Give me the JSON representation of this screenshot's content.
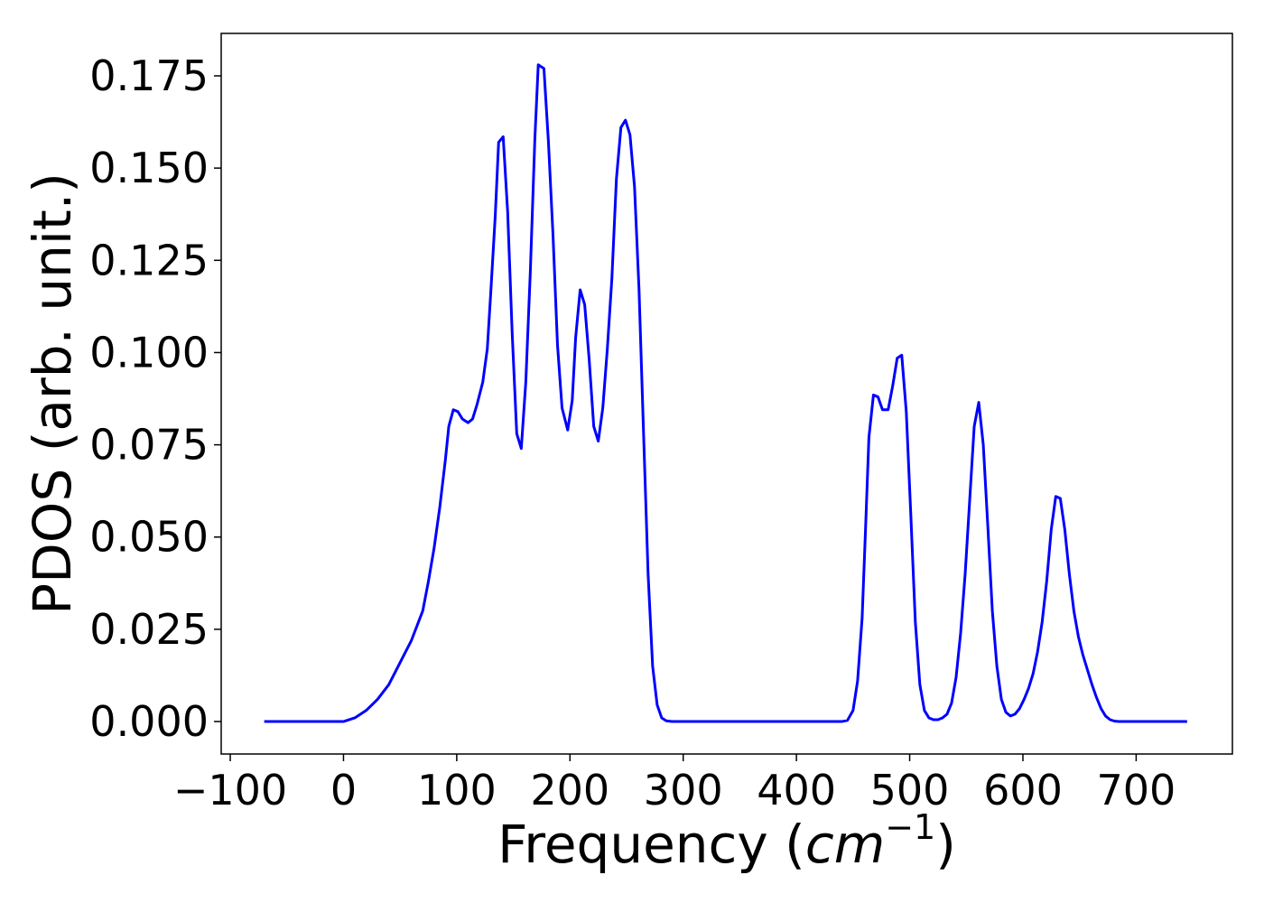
{
  "chart_data": {
    "type": "line",
    "xlabel": [
      "Frequency (",
      "cm",
      "−1",
      ")"
    ],
    "ylabel": "PDOS (arb. unit.)",
    "xlim": [
      -108,
      785
    ],
    "ylim": [
      -0.0088,
      0.1865
    ],
    "xticks": [
      {
        "value": -100,
        "label": "−100"
      },
      0,
      100,
      200,
      300,
      400,
      500,
      600,
      700
    ],
    "yticks": [
      {
        "value": 0,
        "label": "0.000"
      },
      {
        "value": 0.025,
        "label": "0.025"
      },
      {
        "value": 0.05,
        "label": "0.050"
      },
      {
        "value": 0.075,
        "label": "0.075"
      },
      {
        "value": 0.1,
        "label": "0.100"
      },
      {
        "value": 0.125,
        "label": "0.125"
      },
      {
        "value": 0.15,
        "label": "0.150"
      },
      {
        "value": 0.175,
        "label": "0.175"
      }
    ],
    "grid": false,
    "series": [
      {
        "color": "#0000ff",
        "x": [
          -70,
          -30,
          0,
          10,
          20,
          30,
          40,
          50,
          60,
          70,
          75,
          80,
          85,
          90,
          93,
          97,
          101,
          105,
          110,
          114,
          118,
          123,
          127,
          130,
          134,
          137,
          141,
          145,
          149,
          153,
          157,
          161,
          165,
          169,
          172,
          177,
          181,
          185,
          189,
          193,
          198,
          202,
          205,
          209,
          213,
          217,
          221,
          225,
          229,
          233,
          237,
          241,
          245,
          249,
          253,
          257,
          261,
          265,
          269,
          273,
          277,
          281,
          285,
          290,
          440,
          445,
          450,
          454,
          458,
          461,
          464,
          468,
          472,
          476,
          481,
          485,
          489,
          493,
          497,
          501,
          505,
          509,
          513,
          517,
          521,
          525,
          529,
          533,
          537,
          541,
          545,
          549,
          553,
          557,
          561,
          565,
          569,
          573,
          577,
          581,
          585,
          589,
          593,
          597,
          601,
          605,
          609,
          613,
          617,
          621,
          625,
          629,
          633,
          637,
          641,
          645,
          649,
          653,
          657,
          661,
          665,
          669,
          673,
          677,
          681,
          685,
          745
        ],
        "values": [
          0,
          0,
          0,
          0.001,
          0.003,
          0.006,
          0.01,
          0.016,
          0.022,
          0.03,
          0.038,
          0.047,
          0.058,
          0.071,
          0.08,
          0.0845,
          0.084,
          0.082,
          0.081,
          0.082,
          0.086,
          0.092,
          0.101,
          0.116,
          0.137,
          0.157,
          0.1585,
          0.138,
          0.105,
          0.078,
          0.074,
          0.092,
          0.122,
          0.158,
          0.178,
          0.177,
          0.157,
          0.132,
          0.102,
          0.085,
          0.079,
          0.087,
          0.104,
          0.117,
          0.113,
          0.098,
          0.08,
          0.076,
          0.085,
          0.101,
          0.12,
          0.147,
          0.161,
          0.163,
          0.159,
          0.145,
          0.117,
          0.078,
          0.04,
          0.015,
          0.0045,
          0.001,
          0.0002,
          0,
          0,
          0.0003,
          0.003,
          0.011,
          0.028,
          0.052,
          0.077,
          0.0885,
          0.088,
          0.0845,
          0.0845,
          0.091,
          0.0985,
          0.0993,
          0.084,
          0.056,
          0.027,
          0.01,
          0.003,
          0.001,
          0.0005,
          0.0005,
          0.001,
          0.002,
          0.005,
          0.012,
          0.024,
          0.04,
          0.06,
          0.08,
          0.0865,
          0.075,
          0.053,
          0.03,
          0.015,
          0.006,
          0.0025,
          0.0015,
          0.002,
          0.0035,
          0.006,
          0.009,
          0.013,
          0.019,
          0.027,
          0.038,
          0.052,
          0.061,
          0.0605,
          0.052,
          0.04,
          0.03,
          0.023,
          0.018,
          0.014,
          0.01,
          0.0065,
          0.0035,
          0.0015,
          0.0005,
          0.0001,
          0,
          0
        ]
      }
    ]
  }
}
